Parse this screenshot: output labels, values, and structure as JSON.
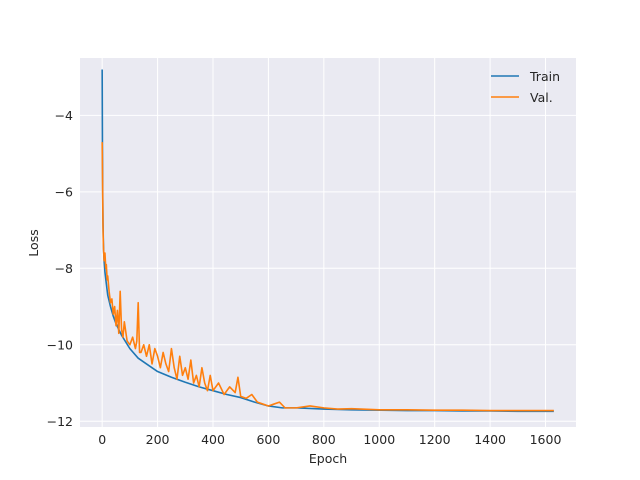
{
  "chart_data": {
    "type": "line",
    "title": "",
    "xlabel": "Epoch",
    "ylabel": "Loss",
    "xlim": [
      -80,
      1710
    ],
    "ylim": [
      -12.15,
      -2.5
    ],
    "xticks": [
      0,
      200,
      400,
      600,
      800,
      1000,
      1200,
      1400,
      1600
    ],
    "yticks": [
      -4,
      -6,
      -8,
      -10,
      -12
    ],
    "grid": true,
    "background": "#eaeaf2",
    "legend_position": "top-right",
    "series": [
      {
        "name": "Train",
        "color": "#1f77b4",
        "x": [
          0,
          1,
          2,
          3,
          4,
          5,
          7,
          10,
          15,
          20,
          30,
          40,
          50,
          70,
          100,
          130,
          160,
          200,
          250,
          300,
          350,
          400,
          450,
          500,
          550,
          600,
          650,
          700,
          800,
          900,
          1000,
          1100,
          1200,
          1300,
          1400,
          1500,
          1630
        ],
        "y": [
          -2.8,
          -4.8,
          -6.0,
          -6.8,
          -7.2,
          -7.5,
          -7.8,
          -8.1,
          -8.4,
          -8.7,
          -9.0,
          -9.25,
          -9.45,
          -9.75,
          -10.1,
          -10.35,
          -10.5,
          -10.7,
          -10.85,
          -10.98,
          -11.1,
          -11.2,
          -11.3,
          -11.38,
          -11.5,
          -11.6,
          -11.65,
          -11.65,
          -11.68,
          -11.7,
          -11.71,
          -11.72,
          -11.72,
          -11.73,
          -11.73,
          -11.74,
          -11.74
        ]
      },
      {
        "name": "Val.",
        "color": "#ff7f0e",
        "x": [
          0,
          1,
          2,
          3,
          4,
          5,
          7,
          10,
          13,
          15,
          18,
          20,
          25,
          30,
          35,
          40,
          45,
          50,
          55,
          60,
          65,
          70,
          75,
          80,
          90,
          100,
          110,
          120,
          125,
          130,
          135,
          140,
          150,
          160,
          170,
          180,
          190,
          200,
          210,
          220,
          230,
          240,
          250,
          260,
          270,
          280,
          290,
          300,
          310,
          320,
          330,
          340,
          350,
          360,
          370,
          380,
          390,
          400,
          420,
          440,
          460,
          480,
          490,
          500,
          520,
          540,
          560,
          580,
          600,
          620,
          640,
          660,
          700,
          750,
          800,
          850,
          900,
          1000,
          1100,
          1200,
          1300,
          1400,
          1500,
          1630
        ],
        "y": [
          -4.7,
          -5.4,
          -6.2,
          -6.9,
          -7.3,
          -7.5,
          -7.8,
          -7.6,
          -8.0,
          -7.9,
          -8.3,
          -8.2,
          -8.6,
          -8.9,
          -8.8,
          -9.2,
          -9.0,
          -9.5,
          -9.1,
          -9.7,
          -8.6,
          -9.6,
          -9.8,
          -9.4,
          -9.9,
          -10.0,
          -9.8,
          -10.1,
          -9.9,
          -8.9,
          -10.2,
          -10.2,
          -10.0,
          -10.3,
          -10.0,
          -10.5,
          -10.1,
          -10.3,
          -10.6,
          -10.2,
          -10.5,
          -10.7,
          -10.1,
          -10.6,
          -10.9,
          -10.3,
          -10.8,
          -10.6,
          -10.9,
          -10.4,
          -11.0,
          -10.8,
          -11.1,
          -10.6,
          -11.0,
          -11.2,
          -10.8,
          -11.2,
          -11.0,
          -11.3,
          -11.1,
          -11.25,
          -10.85,
          -11.35,
          -11.4,
          -11.3,
          -11.5,
          -11.55,
          -11.6,
          -11.55,
          -11.5,
          -11.65,
          -11.65,
          -11.6,
          -11.65,
          -11.68,
          -11.67,
          -11.7,
          -11.7,
          -11.71,
          -11.71,
          -11.72,
          -11.72,
          -11.72
        ]
      }
    ]
  }
}
